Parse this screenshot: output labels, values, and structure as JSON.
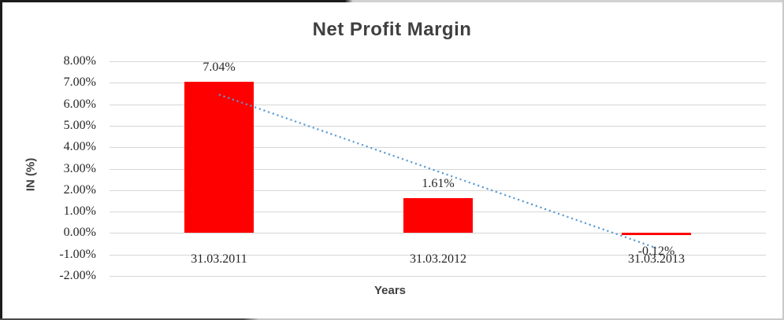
{
  "chart_data": {
    "type": "bar",
    "title": "Net Profit Margin",
    "categories": [
      "31.03.2011",
      "31.03.2012",
      "31.03.2013"
    ],
    "values": [
      7.04,
      1.61,
      -0.12
    ],
    "data_labels": [
      "7.04%",
      "1.61%",
      "-0.12%"
    ],
    "xlabel": "Years",
    "ylabel": "IN (%)",
    "ylim": [
      -2,
      8
    ],
    "ytick_step": 1,
    "ytick_labels": [
      "8.00%",
      "7.00%",
      "6.00%",
      "5.00%",
      "4.00%",
      "3.00%",
      "2.00%",
      "1.00%",
      "0.00%",
      "-1.00%",
      "-2.00%"
    ],
    "grid": true,
    "legend": "none",
    "bar_color": "#ff0000",
    "gridline_color": "#d6d6d6",
    "text_color": "#262626",
    "title_color": "#404040",
    "trendline": {
      "type": "linear",
      "style": "dotted",
      "color": "#5b9bd5",
      "start_value": 6.45,
      "end_value": -0.7
    }
  }
}
